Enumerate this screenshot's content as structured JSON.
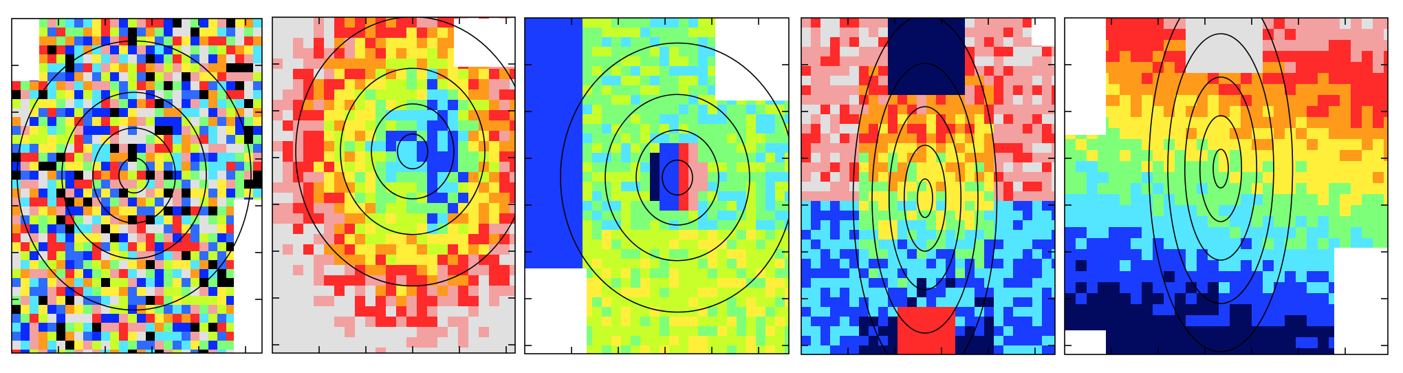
{
  "figure": {
    "panels": [
      {
        "id": "panel-1",
        "pattern": "mottled-noise",
        "background_color": "#54e6ff",
        "palette": [
          "#0a2bff",
          "#2f6bff",
          "#54e6ff",
          "#7dff7a",
          "#c8ff2a",
          "#ffee3a",
          "#ff9a1a",
          "#ff2a2a",
          "#f3a0a0",
          "#000000",
          "#e0e0e0"
        ],
        "contours": "round-nested",
        "contour_count": 4
      },
      {
        "id": "panel-2",
        "pattern": "radial-cool-center",
        "background_color": "#ffb14a",
        "palette": [
          "#1a3cff",
          "#54e6ff",
          "#7dff7a",
          "#c8ff2a",
          "#ffee3a",
          "#ff9a1a",
          "#ff2a2a",
          "#f3a0a0",
          "#e0e0e0"
        ],
        "contours": "round-nested",
        "contour_count": 4
      },
      {
        "id": "panel-3",
        "pattern": "dipole-center",
        "background_color": "#9cff4a",
        "palette": [
          "#020a60",
          "#1a3cff",
          "#54e6ff",
          "#7dff7a",
          "#c8ff2a",
          "#ffee3a",
          "#ff2a2a",
          "#f3a0a0",
          "#ffffff"
        ],
        "contours": "round-nested",
        "contour_count": 4
      },
      {
        "id": "panel-4",
        "pattern": "vertical-gradient",
        "background_color": "#9cff4a",
        "palette": [
          "#020a60",
          "#1a3cff",
          "#54e6ff",
          "#7dff7a",
          "#ffee3a",
          "#ff9a1a",
          "#ff2a2a",
          "#f3a0a0",
          "#e0e0e0"
        ],
        "contours": "elongated-vertical",
        "contour_count": 5
      },
      {
        "id": "panel-5",
        "pattern": "rotation-field",
        "background_color": "#54e6ff",
        "palette": [
          "#020a60",
          "#1a3cff",
          "#54e6ff",
          "#7dff7a",
          "#ffee3a",
          "#ff9a1a",
          "#ff2a2a",
          "#f3a0a0",
          "#e0e0e0"
        ],
        "contours": "elongated-vertical",
        "contour_count": 5
      }
    ]
  }
}
